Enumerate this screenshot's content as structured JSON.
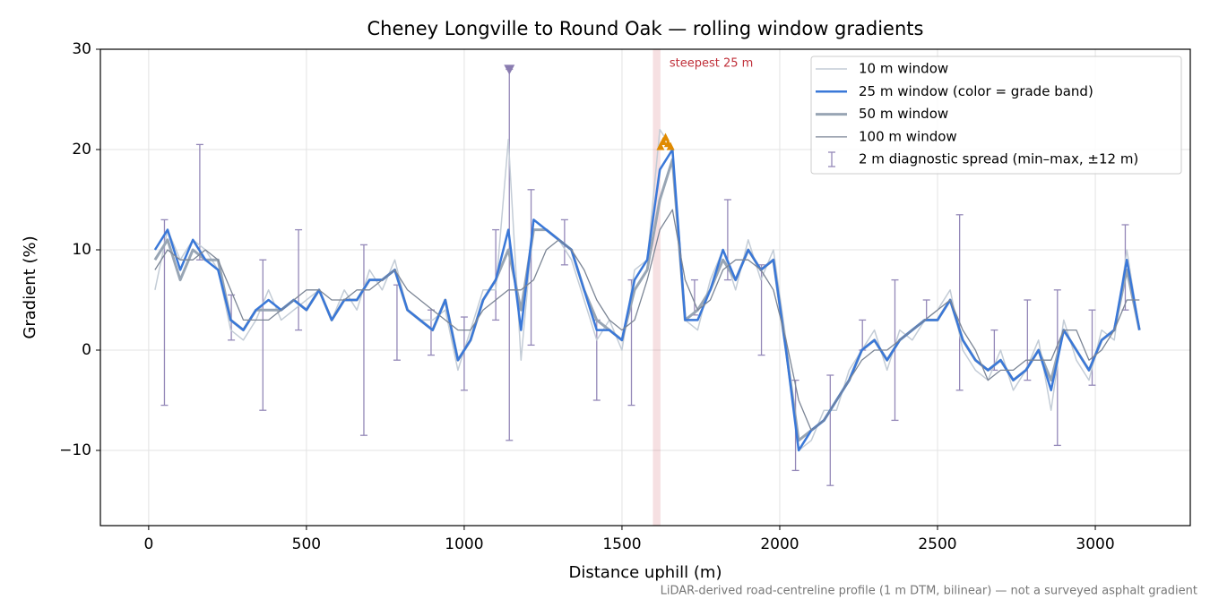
{
  "chart_data": {
    "type": "line",
    "title": "Cheney Longville to Round Oak — rolling window gradients",
    "xlabel": "Distance uphill (m)",
    "ylabel": "Gradient (%)",
    "footnote": "LiDAR-derived road-centreline profile (1 m DTM, bilinear) — not a surveyed asphalt gradient",
    "xlim": [
      -153,
      3301
    ],
    "ylim": [
      -17.5,
      30
    ],
    "xticks": [
      0,
      500,
      1000,
      1500,
      2000,
      2500,
      3000
    ],
    "yticks": [
      {
        "value": -10,
        "label": "−10"
      },
      0,
      10,
      20,
      30
    ],
    "grid": true,
    "legend": "upper right",
    "x": [
      20,
      60,
      100,
      140,
      180,
      220,
      260,
      300,
      340,
      380,
      420,
      460,
      500,
      540,
      580,
      620,
      660,
      700,
      740,
      780,
      820,
      860,
      900,
      940,
      980,
      1020,
      1060,
      1100,
      1140,
      1180,
      1220,
      1260,
      1300,
      1340,
      1380,
      1420,
      1460,
      1500,
      1540,
      1580,
      1620,
      1660,
      1700,
      1740,
      1780,
      1820,
      1860,
      1900,
      1940,
      1980,
      2020,
      2060,
      2100,
      2140,
      2180,
      2220,
      2260,
      2300,
      2340,
      2380,
      2420,
      2460,
      2500,
      2540,
      2580,
      2620,
      2660,
      2700,
      2740,
      2780,
      2820,
      2860,
      2900,
      2940,
      2980,
      3020,
      3060,
      3100,
      3140
    ],
    "series": [
      {
        "name": "10 m window",
        "color": "#c3ccd6",
        "width": 1.5,
        "values": [
          6,
          12,
          9,
          11,
          10,
          8,
          2,
          1,
          3,
          6,
          3,
          4,
          5,
          6,
          3,
          6,
          4,
          8,
          6,
          9,
          4,
          3,
          3,
          4,
          -2,
          2,
          6,
          6,
          21,
          -1,
          13,
          12,
          11,
          9,
          5,
          1,
          3,
          0,
          8,
          9,
          22,
          20,
          3,
          2,
          7,
          10,
          6,
          11,
          7,
          10,
          1,
          -10,
          -9,
          -6,
          -6,
          -2,
          0,
          2,
          -2,
          2,
          1,
          3,
          4,
          6,
          0,
          -2,
          -3,
          0,
          -4,
          -2,
          1,
          -6,
          3,
          -1,
          -3,
          2,
          1,
          10,
          2
        ]
      },
      {
        "name": "25 m window (color = grade band)",
        "color": "#3a78d8",
        "width": 2.5,
        "values": [
          10,
          12,
          8,
          11,
          9,
          8,
          3,
          2,
          4,
          5,
          4,
          5,
          4,
          6,
          3,
          5,
          5,
          7,
          7,
          8,
          4,
          3,
          2,
          5,
          -1,
          1,
          5,
          7,
          12,
          2,
          13,
          12,
          11,
          10,
          6,
          2,
          2,
          1,
          7,
          9,
          18,
          20,
          3,
          3,
          6,
          10,
          7,
          10,
          8,
          9,
          0,
          -10,
          -8,
          -7,
          -5,
          -3,
          0,
          1,
          -1,
          1,
          2,
          3,
          3,
          5,
          1,
          -1,
          -2,
          -1,
          -3,
          -2,
          0,
          -4,
          2,
          0,
          -2,
          1,
          2,
          9,
          2
        ]
      },
      {
        "name": "50 m window",
        "color": "#98a5b4",
        "width": 3,
        "values": [
          9,
          11,
          7,
          10,
          9,
          9,
          3,
          2,
          4,
          4,
          4,
          5,
          4,
          6,
          3,
          5,
          5,
          7,
          7,
          8,
          4,
          3,
          2,
          5,
          -1,
          1,
          5,
          7,
          10,
          4,
          12,
          12,
          11,
          10,
          6,
          3,
          2,
          1,
          6,
          8,
          15,
          19,
          3,
          4,
          6,
          9,
          7,
          10,
          8,
          9,
          0,
          -9,
          -8,
          -7,
          -5,
          -3,
          0,
          1,
          -1,
          1,
          2,
          3,
          3,
          5,
          1,
          -1,
          -2,
          -1,
          -3,
          -2,
          0,
          -3,
          2,
          0,
          -2,
          1,
          2,
          8,
          2
        ]
      },
      {
        "name": "100 m window",
        "color": "#7b8595",
        "width": 1.3,
        "values": [
          8,
          10,
          9,
          9,
          10,
          9,
          6,
          3,
          3,
          3,
          4,
          5,
          6,
          6,
          5,
          5,
          6,
          6,
          7,
          8,
          6,
          5,
          4,
          3,
          2,
          2,
          4,
          5,
          6,
          6,
          7,
          10,
          11,
          10,
          8,
          5,
          3,
          2,
          3,
          7,
          12,
          14,
          7,
          4,
          5,
          8,
          9,
          9,
          8,
          6,
          1,
          -5,
          -8,
          -7,
          -5,
          -3,
          -1,
          0,
          0,
          1,
          2,
          3,
          4,
          5,
          2,
          0,
          -3,
          -2,
          -2,
          -1,
          -1,
          -1,
          2,
          2,
          -1,
          0,
          2,
          5,
          5
        ]
      }
    ],
    "errorbars": {
      "name": "2 m diagnostic spread (min–max, ±12 m)",
      "color": "#9488b8",
      "x": [
        50,
        162,
        262,
        362,
        475,
        682,
        787,
        895,
        1000,
        1100,
        1143,
        1212,
        1318,
        1420,
        1530,
        1730,
        1835,
        1942,
        2050,
        2160,
        2262,
        2365,
        2465,
        2570,
        2680,
        2785,
        2880,
        2990,
        3095
      ],
      "low": [
        -5.5,
        9,
        1,
        -6,
        2,
        -8.5,
        -1,
        -0.5,
        -4,
        3,
        -9,
        0.5,
        8.5,
        -5,
        -5.5,
        3.5,
        7,
        -0.5,
        -12,
        -13.5,
        0,
        -7,
        3,
        -4,
        -2,
        -3,
        -9.5,
        -3.5,
        4
      ],
      "high": [
        13,
        20.5,
        5.5,
        9,
        12,
        10.5,
        6.5,
        4,
        3.3,
        12,
        28,
        16,
        13,
        3,
        7,
        7,
        15,
        8.5,
        -3,
        -2.5,
        3,
        7,
        5,
        13.5,
        2,
        5,
        6,
        4,
        12.5
      ]
    },
    "peak_marker": {
      "x": 1143,
      "y": 28,
      "color": "#8a7cb0"
    },
    "steepest": {
      "label": "steepest 25 m",
      "span": [
        1598,
        1622
      ],
      "color": "#c0303a",
      "points": {
        "color": "#e08a00",
        "x": [
          1622,
          1630,
          1638,
          1646,
          1654
        ],
        "y": [
          20.3,
          20.8,
          21.2,
          20.6,
          20.3
        ]
      }
    }
  }
}
